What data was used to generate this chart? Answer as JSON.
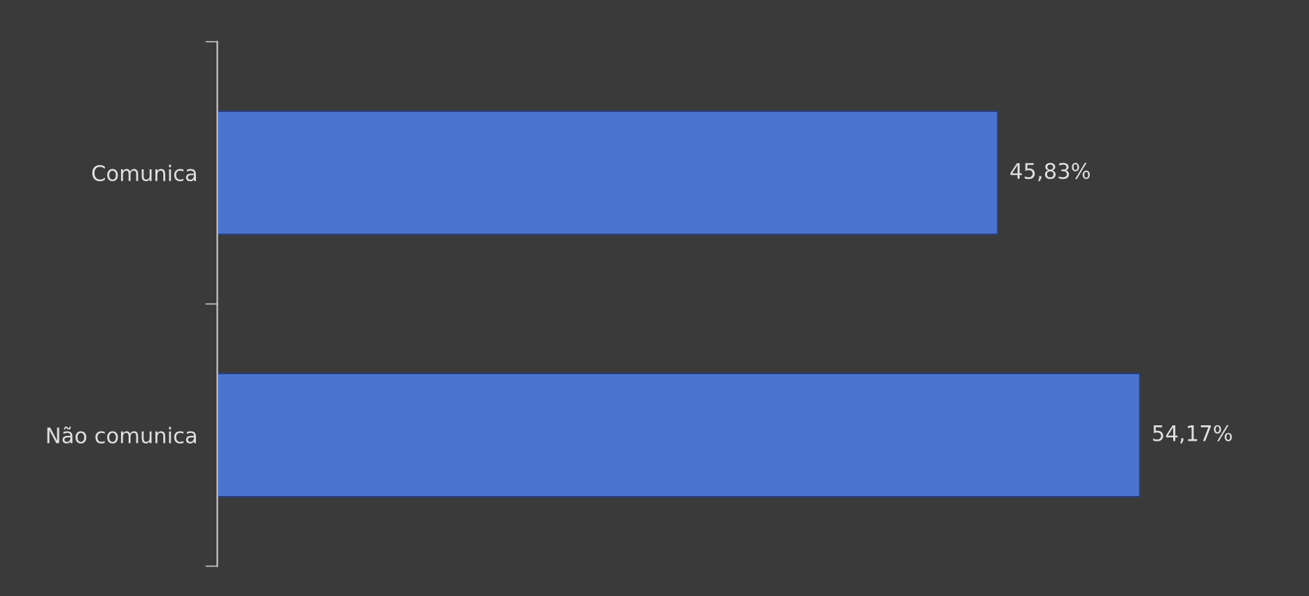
{
  "chart_data": {
    "type": "bar",
    "orientation": "horizontal",
    "categories": [
      "Comunica",
      "Não comunica"
    ],
    "values": [
      45.83,
      54.17
    ],
    "value_labels": [
      "45,83%",
      "54,17%"
    ],
    "color": "#4a74d0",
    "grid": false,
    "legend": false,
    "tick_labels": "y"
  }
}
